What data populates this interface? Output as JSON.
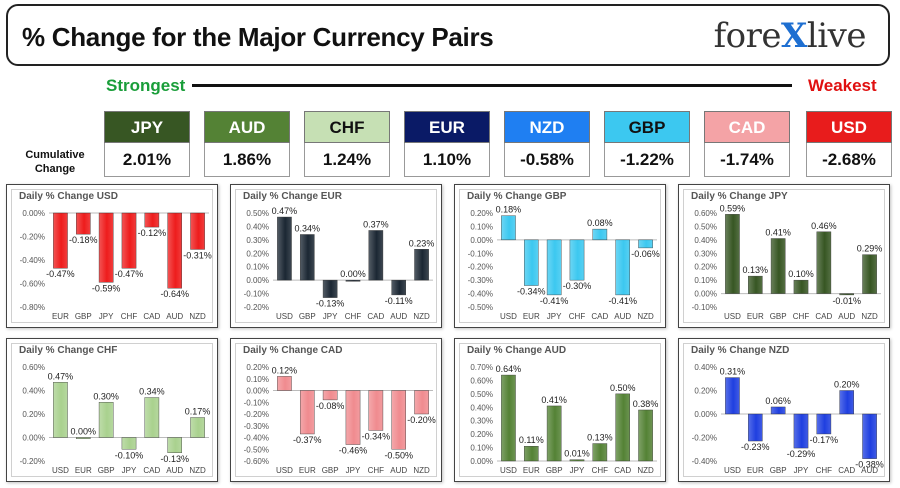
{
  "header": {
    "title": "% Change for the Major Currency Pairs",
    "logo_left": "fore",
    "logo_x": "X",
    "logo_right": "live"
  },
  "scale": {
    "strongest": "Strongest",
    "weakest": "Weakest"
  },
  "cumulative_label": "Cumulative Change",
  "currencies": [
    {
      "name": "JPY",
      "value": "2.01%",
      "bg": "#375623",
      "fg": "#ffffff"
    },
    {
      "name": "AUD",
      "value": "1.86%",
      "bg": "#548235",
      "fg": "#ffffff"
    },
    {
      "name": "CHF",
      "value": "1.24%",
      "bg": "#c6e0b4",
      "fg": "#111111"
    },
    {
      "name": "EUR",
      "value": "1.10%",
      "bg": "#0a1a66",
      "fg": "#ffffff"
    },
    {
      "name": "NZD",
      "value": "-0.58%",
      "bg": "#1f7ff2",
      "fg": "#ffffff"
    },
    {
      "name": "GBP",
      "value": "-1.22%",
      "bg": "#3cc8f0",
      "fg": "#111111"
    },
    {
      "name": "CAD",
      "value": "-1.74%",
      "bg": "#f4a3a6",
      "fg": "#ffffff"
    },
    {
      "name": "USD",
      "value": "-2.68%",
      "bg": "#e81c1c",
      "fg": "#ffffff"
    }
  ],
  "chart_data": [
    {
      "type": "bar",
      "title": "Daily % Change USD",
      "categories": [
        "EUR",
        "GBP",
        "JPY",
        "CHF",
        "CAD",
        "AUD",
        "NZD"
      ],
      "values": [
        -0.47,
        -0.18,
        -0.59,
        -0.47,
        -0.12,
        -0.64,
        -0.31
      ],
      "labels": [
        "-0.47%",
        "-0.18%",
        "-0.59%",
        "-0.47%",
        "-0.12%",
        "-0.64%",
        "-0.31%"
      ],
      "ylim": [
        -0.8,
        0.0
      ],
      "yticks": [
        0.0,
        -0.2,
        -0.4,
        -0.6,
        -0.8
      ],
      "ytick_labels": [
        "0.00%",
        "-0.20%",
        "-0.40%",
        "-0.60%",
        "-0.80%"
      ],
      "color": "#ee1c1c"
    },
    {
      "type": "bar",
      "title": "Daily % Change EUR",
      "categories": [
        "USD",
        "GBP",
        "JPY",
        "CHF",
        "CAD",
        "AUD",
        "NZD"
      ],
      "values": [
        0.47,
        0.34,
        -0.13,
        0.0,
        0.37,
        -0.11,
        0.23
      ],
      "labels": [
        "0.47%",
        "0.34%",
        "-0.13%",
        "0.00%",
        "0.37%",
        "-0.11%",
        "0.23%"
      ],
      "ylim": [
        -0.2,
        0.5
      ],
      "yticks": [
        0.5,
        0.4,
        0.3,
        0.2,
        0.1,
        0.0,
        -0.1,
        -0.2
      ],
      "ytick_labels": [
        "0.50%",
        "0.40%",
        "0.30%",
        "0.20%",
        "0.10%",
        "0.00%",
        "-0.10%",
        "-0.20%"
      ],
      "color": "#1b2733"
    },
    {
      "type": "bar",
      "title": "Daily % Change GBP",
      "categories": [
        "USD",
        "EUR",
        "JPY",
        "CHF",
        "CAD",
        "AUD",
        "NZD"
      ],
      "values": [
        0.18,
        -0.34,
        -0.41,
        -0.3,
        0.08,
        -0.41,
        -0.06
      ],
      "labels": [
        "0.18%",
        "-0.34%",
        "-0.41%",
        "-0.30%",
        "0.08%",
        "-0.41%",
        "-0.06%"
      ],
      "ylim": [
        -0.5,
        0.2
      ],
      "yticks": [
        0.2,
        0.1,
        0.0,
        -0.1,
        -0.2,
        -0.3,
        -0.4,
        -0.5
      ],
      "ytick_labels": [
        "0.20%",
        "0.10%",
        "0.00%",
        "-0.10%",
        "-0.20%",
        "-0.30%",
        "-0.40%",
        "-0.50%"
      ],
      "color": "#3cc8f0"
    },
    {
      "type": "bar",
      "title": "Daily % Change JPY",
      "categories": [
        "USD",
        "EUR",
        "GBP",
        "CHF",
        "CAD",
        "AUD",
        "NZD"
      ],
      "values": [
        0.59,
        0.13,
        0.41,
        0.1,
        0.46,
        -0.01,
        0.29
      ],
      "labels": [
        "0.59%",
        "0.13%",
        "0.41%",
        "0.10%",
        "0.46%",
        "-0.01%",
        "0.29%"
      ],
      "ylim": [
        -0.1,
        0.6
      ],
      "yticks": [
        0.6,
        0.5,
        0.4,
        0.3,
        0.2,
        0.1,
        0.0,
        -0.1
      ],
      "ytick_labels": [
        "0.60%",
        "0.50%",
        "0.40%",
        "0.30%",
        "0.20%",
        "0.10%",
        "0.00%",
        "-0.10%"
      ],
      "color": "#375623"
    },
    {
      "type": "bar",
      "title": "Daily % Change CHF",
      "categories": [
        "USD",
        "EUR",
        "GBP",
        "JPY",
        "CAD",
        "AUD",
        "NZD"
      ],
      "values": [
        0.47,
        0.0,
        0.3,
        -0.1,
        0.34,
        -0.13,
        0.17
      ],
      "labels": [
        "0.47%",
        "0.00%",
        "0.30%",
        "-0.10%",
        "0.34%",
        "-0.13%",
        "0.17%"
      ],
      "ylim": [
        -0.2,
        0.6
      ],
      "yticks": [
        0.6,
        0.4,
        0.2,
        0.0,
        -0.2
      ],
      "ytick_labels": [
        "0.60%",
        "0.40%",
        "0.20%",
        "0.00%",
        "-0.20%"
      ],
      "color": "#a9d18e"
    },
    {
      "type": "bar",
      "title": "Daily % Change CAD",
      "categories": [
        "USD",
        "EUR",
        "GBP",
        "JPY",
        "CHF",
        "AUD",
        "NZD"
      ],
      "values": [
        0.12,
        -0.37,
        -0.08,
        -0.46,
        -0.34,
        -0.5,
        -0.2
      ],
      "labels": [
        "0.12%",
        "-0.37%",
        "-0.08%",
        "-0.46%",
        "-0.34%",
        "-0.50%",
        "-0.20%"
      ],
      "ylim": [
        -0.6,
        0.2
      ],
      "yticks": [
        0.2,
        0.1,
        0.0,
        -0.1,
        -0.2,
        -0.3,
        -0.4,
        -0.5,
        -0.6
      ],
      "ytick_labels": [
        "0.20%",
        "0.10%",
        "0.00%",
        "-0.10%",
        "-0.20%",
        "-0.30%",
        "-0.40%",
        "-0.50%",
        "-0.60%"
      ],
      "color": "#f08b8f"
    },
    {
      "type": "bar",
      "title": "Daily % Change AUD",
      "categories": [
        "USD",
        "EUR",
        "GBP",
        "JPY",
        "CHF",
        "CAD",
        "NZD"
      ],
      "values": [
        0.64,
        0.11,
        0.41,
        0.01,
        0.13,
        0.5,
        0.38
      ],
      "labels": [
        "0.64%",
        "0.11%",
        "0.41%",
        "0.01%",
        "0.13%",
        "0.50%",
        "0.38%"
      ],
      "ylim": [
        0.0,
        0.7
      ],
      "yticks": [
        0.7,
        0.6,
        0.5,
        0.4,
        0.3,
        0.2,
        0.1,
        0.0
      ],
      "ytick_labels": [
        "0.70%",
        "0.60%",
        "0.50%",
        "0.40%",
        "0.30%",
        "0.20%",
        "0.10%",
        "0.00%"
      ],
      "color": "#548235"
    },
    {
      "type": "bar",
      "title": "Daily % Change NZD",
      "categories": [
        "USD",
        "EUR",
        "GBP",
        "JPY",
        "CHF",
        "CAD",
        "AUD"
      ],
      "values": [
        0.31,
        -0.23,
        0.06,
        -0.29,
        -0.17,
        0.2,
        -0.38
      ],
      "labels": [
        "0.31%",
        "-0.23%",
        "0.06%",
        "-0.29%",
        "-0.17%",
        "0.20%",
        "-0.38%"
      ],
      "ylim": [
        -0.4,
        0.4
      ],
      "yticks": [
        0.4,
        0.2,
        0.0,
        -0.2,
        -0.4
      ],
      "ytick_labels": [
        "0.40%",
        "0.20%",
        "0.00%",
        "-0.20%",
        "-0.40%"
      ],
      "color": "#1f3fe0"
    }
  ]
}
